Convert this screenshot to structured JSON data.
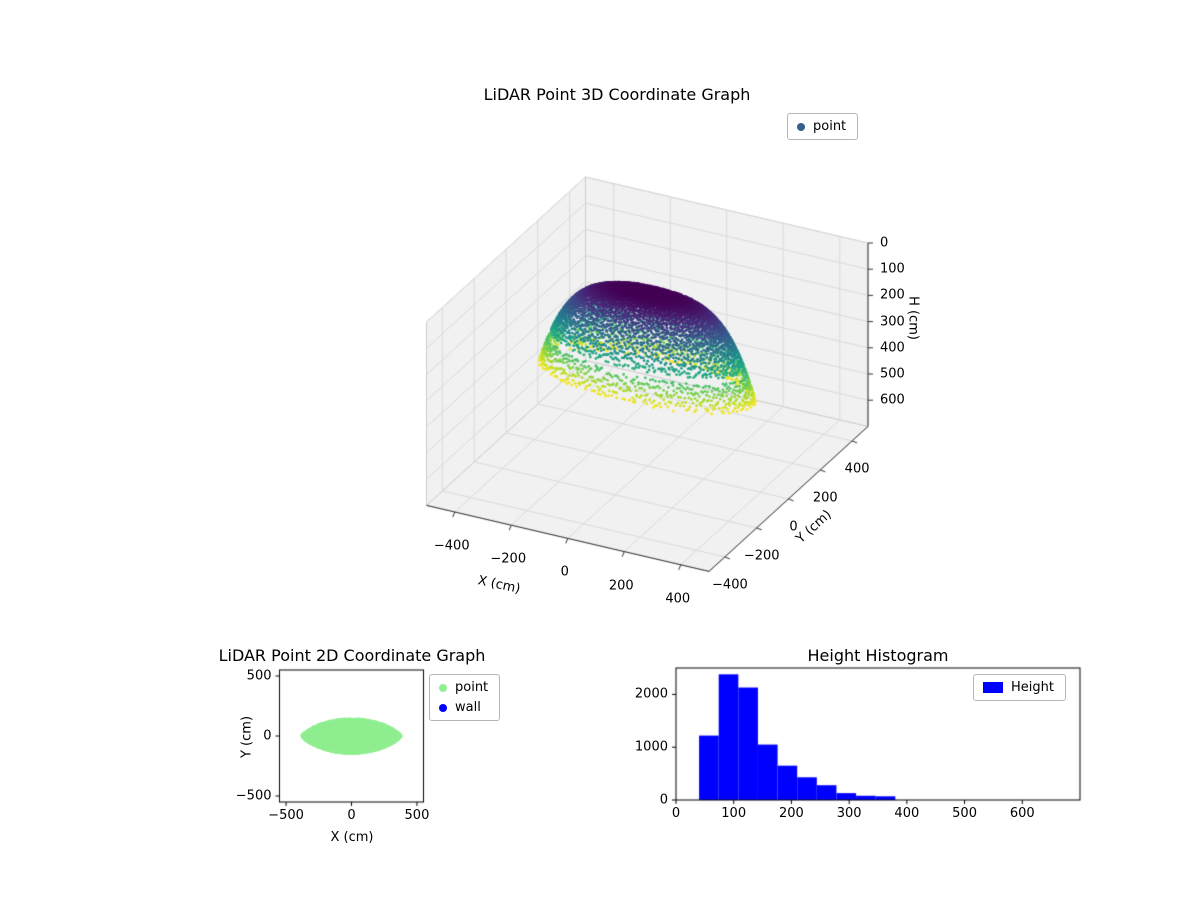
{
  "chart_data": [
    {
      "type": "scatter3d",
      "title": "LiDAR Point 3D Coordinate Graph",
      "xlabel": "X (cm)",
      "ylabel": "Y (cm)",
      "zlabel": "H (cm)",
      "xlim": [
        -500,
        500
      ],
      "ylim": [
        -500,
        500
      ],
      "zlim": [
        0,
        700
      ],
      "zaxis_inverted": true,
      "xticks": [
        -400,
        -200,
        0,
        200,
        400
      ],
      "xtick_labels": [
        "−400",
        "−200",
        "0",
        "200",
        "400"
      ],
      "yticks": [
        -400,
        -200,
        0,
        200,
        400
      ],
      "ytick_labels": [
        "−400",
        "−200",
        "0",
        "200",
        "400"
      ],
      "zticks": [
        0,
        100,
        200,
        300,
        400,
        500,
        600
      ],
      "ztick_labels": [
        "0",
        "100",
        "200",
        "300",
        "400",
        "500",
        "600"
      ],
      "legend": {
        "labels": [
          "point"
        ],
        "marker_colors": [
          "#35608d"
        ]
      },
      "colormap": "viridis",
      "point_cloud": {
        "shape": "elliptical dome surface of scatter points",
        "x_radius": 375,
        "y_radius": 140,
        "h_min": 40,
        "h_max": 380,
        "profile": "H = h_min + (h_max - h_min) * ((x/xr)^2 + (y/yr)^2)^2",
        "color_mapping": "viridis over H range (dark purple = low H at dome top, yellow = high H at rim)"
      }
    },
    {
      "type": "scatter",
      "title": "LiDAR Point 2D Coordinate Graph",
      "xlabel": "X (cm)",
      "ylabel": "Y (cm)",
      "xlim": [
        -550,
        550
      ],
      "ylim": [
        -550,
        550
      ],
      "xticks": [
        -500,
        0,
        500
      ],
      "xtick_labels": [
        "−500",
        "0",
        "500"
      ],
      "yticks": [
        500,
        0,
        -500
      ],
      "ytick_labels": [
        "500",
        "0",
        "−500"
      ],
      "legend": {
        "labels": [
          "point",
          "wall"
        ],
        "marker_colors": [
          "#90ee90",
          "#0000ff"
        ]
      },
      "series": [
        {
          "name": "point",
          "color": "#90ee90",
          "footprint": "lens-shaped solid blob centered at origin, x about ±375 cm, y about ±140 cm"
        },
        {
          "name": "wall",
          "color": "#0000ff",
          "note": "no wall points visible in view"
        }
      ]
    },
    {
      "type": "histogram",
      "title": "Height Histogram",
      "legend": {
        "labels": [
          "Height"
        ],
        "marker_colors": [
          "#0000ff"
        ]
      },
      "bar_color": "#0000ff",
      "bin_start": 40,
      "bin_width": 34,
      "counts": [
        1220,
        2380,
        2130,
        1050,
        650,
        430,
        280,
        130,
        80,
        70
      ],
      "xlim": [
        0,
        700
      ],
      "ylim": [
        0,
        2500
      ],
      "xticks": [
        0,
        100,
        200,
        300,
        400,
        500,
        600
      ],
      "xtick_labels": [
        "0",
        "100",
        "200",
        "300",
        "400",
        "500",
        "600"
      ],
      "yticks": [
        0,
        1000,
        2000
      ],
      "ytick_labels": [
        "0",
        "1000",
        "2000"
      ]
    }
  ]
}
